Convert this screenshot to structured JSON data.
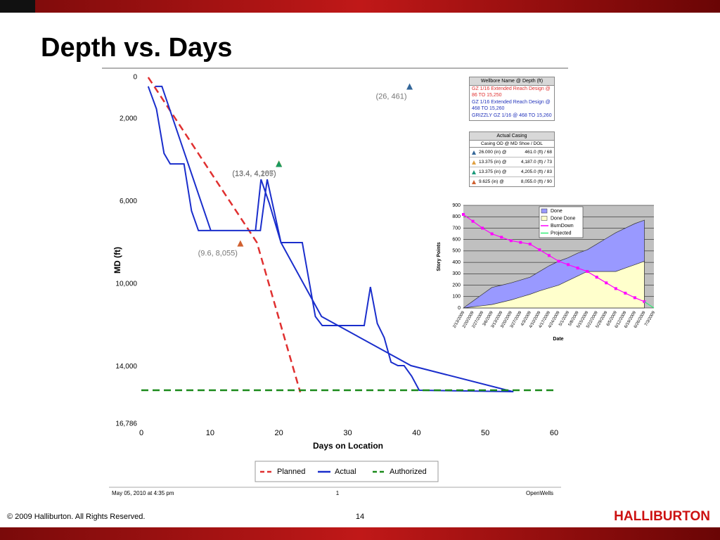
{
  "slide": {
    "title": "Depth vs. Days",
    "copyright": "© 2009 Halliburton. All Rights Reserved.",
    "page": "14",
    "logo": "HALLIBURTON"
  },
  "report_footer": {
    "date": "May 05, 2010 at  4:35 pm",
    "page": "1",
    "app": "OpenWells"
  },
  "wellbore_table": {
    "title": "Wellbore Name @ Depth (ft)",
    "entries": [
      {
        "text": "GZ 1/16 Extended Reach Design @ 86 TO 15,250",
        "color": "#e03030"
      },
      {
        "text": "GZ 1/16 Extended Reach Design @ 468 TO 15,260",
        "color": "#2233bb"
      },
      {
        "text": "GRIZZLY GZ 1/16 @ 468 TO 15,260",
        "color": "#2233bb"
      }
    ]
  },
  "casing_table": {
    "title": "Actual Casing",
    "subtitle": "Casing OD @  MD Shoe / DOL",
    "rows": [
      {
        "od": "26.000 (in) @",
        "shoe": "461.0 (ft) / 68",
        "color": "#336699"
      },
      {
        "od": "13.375 (in) @",
        "shoe": "4,187.0 (ft) / 73",
        "color": "#e0a040"
      },
      {
        "od": "13.375 (in) @",
        "shoe": "4,205.0 (ft) / 83",
        "color": "#1a9a7a"
      },
      {
        "od": "9.625 (in) @",
        "shoe": "8,055.0 (ft) / 90",
        "color": "#d06030"
      }
    ]
  },
  "chart_data": [
    {
      "type": "line",
      "x_label": "Days on Location",
      "y_label": "MD (ft)",
      "xlim": [
        0,
        60
      ],
      "xticks": [
        0,
        10,
        20,
        30,
        40,
        50,
        60
      ],
      "ylim": [
        16786,
        0
      ],
      "yticks": [
        0,
        {
          "value": 2000,
          "label": "2,000"
        },
        {
          "value": 6000,
          "label": "6,000"
        },
        {
          "value": 10000,
          "label": "10,000"
        },
        {
          "value": 14000,
          "label": "14,000"
        },
        {
          "value": 16786,
          "label": "16,786"
        }
      ],
      "legend": "bottom",
      "series": [
        {
          "name": "Planned",
          "color": "#e03030",
          "style": "dashed",
          "x": [
            1,
            16.8,
            23.1
          ],
          "values": [
            0,
            8000,
            15250
          ]
        },
        {
          "name": "Actual",
          "color": "#1a2ecc",
          "style": "solid",
          "x": [
            1,
            2.2,
            3.3,
            4.2,
            6.2,
            7.3,
            8.3,
            17.3,
            18.3,
            19.3,
            20.3,
            23.4,
            25.3,
            26.3,
            32.4,
            33.3,
            34.3,
            35.3,
            36.3,
            37.3,
            38.2,
            39.3,
            40.4,
            54.1,
            null,
            2,
            3,
            10.1,
            17.3,
            null,
            16.6,
            17.4,
            18.6,
            20.3,
            26.2,
            39.2,
            54
          ],
          "values": [
            440,
            1530,
            3680,
            4190,
            4190,
            6470,
            7420,
            7420,
            4940,
            6470,
            8000,
            8000,
            11580,
            12020,
            12020,
            10150,
            11920,
            12600,
            13790,
            13960,
            13960,
            14470,
            15150,
            15220,
            null,
            440,
            440,
            7420,
            7420,
            null,
            7420,
            4940,
            6100,
            8000,
            11580,
            13960,
            15220
          ]
        },
        {
          "name": "Authorized",
          "color": "#1a8a1a",
          "style": "dashed",
          "x": [
            0,
            60
          ],
          "values": [
            15150,
            15150
          ]
        }
      ],
      "annotations": [
        {
          "text": "(26, 461)",
          "x": 39,
          "y": 461,
          "color": "#336699"
        },
        {
          "text": "(13.4, 4,187)",
          "x": 20,
          "y": 4187,
          "color": "#e0a040"
        },
        {
          "text": "(13.4, 4,205)",
          "x": 20,
          "y": 4205,
          "color": "#1a9a60"
        },
        {
          "text": "(9.6, 8,055)",
          "x": 14.4,
          "y": 8055,
          "color": "#d06030"
        }
      ]
    },
    {
      "type": "area",
      "x_label": "Date",
      "y_label": "Story Points",
      "categories": [
        "2/13/2009",
        "2/20/2009",
        "2/27/2009",
        "3/6/2009",
        "3/13/2009",
        "3/20/2009",
        "3/27/2009",
        "4/3/2009",
        "4/10/2009",
        "4/17/2009",
        "4/24/2009",
        "5/1/2009",
        "5/8/2009",
        "5/15/2009",
        "5/22/2009",
        "5/29/2009",
        "6/5/2009",
        "6/12/2009",
        "6/19/2009",
        "6/26/2009",
        "7/3/2009"
      ],
      "ylim": [
        0,
        900
      ],
      "yticks": [
        0,
        100,
        200,
        300,
        400,
        500,
        600,
        700,
        800,
        900
      ],
      "grid": true,
      "legend": "top-right",
      "series": [
        {
          "name": "Done",
          "type": "area",
          "color": "#9999ff",
          "values": [
            0,
            60,
            120,
            180,
            200,
            220,
            245,
            270,
            320,
            370,
            410,
            440,
            480,
            510,
            560,
            610,
            660,
            700,
            740,
            770,
            null
          ]
        },
        {
          "name": "Done Done",
          "type": "area",
          "color": "#ffffcc",
          "values": [
            0,
            10,
            20,
            30,
            50,
            70,
            95,
            120,
            150,
            175,
            200,
            240,
            280,
            320,
            320,
            320,
            320,
            350,
            380,
            410,
            null
          ]
        },
        {
          "name": "BurnDown",
          "type": "line",
          "color": "#ff00ff",
          "values": [
            820,
            760,
            700,
            650,
            620,
            590,
            575,
            560,
            510,
            460,
            410,
            380,
            350,
            320,
            270,
            220,
            170,
            130,
            90,
            55,
            null
          ]
        },
        {
          "name": "Projected",
          "type": "line",
          "color": "#33ee77",
          "values": [
            null,
            null,
            null,
            null,
            null,
            null,
            null,
            null,
            null,
            null,
            null,
            null,
            null,
            null,
            null,
            null,
            null,
            null,
            null,
            55,
            0
          ]
        }
      ]
    }
  ]
}
